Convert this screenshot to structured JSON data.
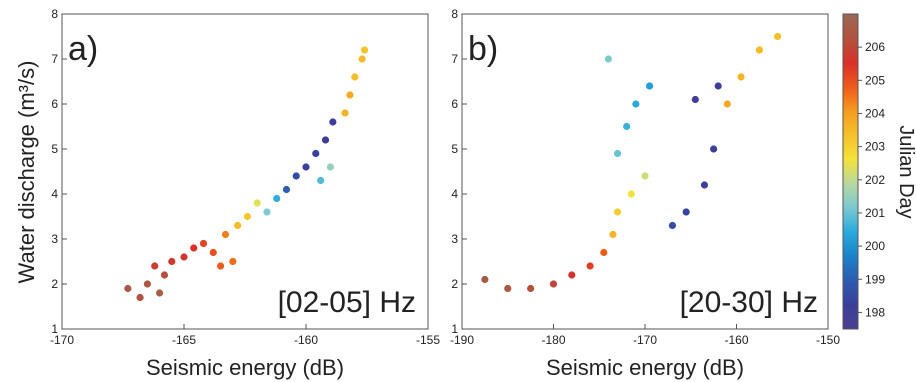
{
  "figure": {
    "ylabel": "Water discharge (m³/s)",
    "xlabel": "Seismic energy (dB)"
  },
  "colorbar": {
    "label": "Julian Day",
    "ticks": [
      "198",
      "199",
      "200",
      "201",
      "202",
      "203",
      "204",
      "205",
      "206"
    ],
    "range": [
      197.5,
      207.0
    ],
    "colors": [
      "#4a3f92",
      "#3a3f9a",
      "#2d5cb0",
      "#1b82c8",
      "#28aadd",
      "#7cc8d0",
      "#b6d8a0",
      "#f4e23a",
      "#f6c12a",
      "#f59a20",
      "#ee5a1a",
      "#d8302a",
      "#b0533e",
      "#9a6856"
    ]
  },
  "chart_data": [
    {
      "type": "scatter",
      "panel_label": "a)",
      "annotation": "[02-05] Hz",
      "xlim": [
        -170,
        -155
      ],
      "ylim": [
        1,
        8
      ],
      "xticks": [
        "-170",
        "-165",
        "-160",
        "-155"
      ],
      "yticks": [
        "1",
        "2",
        "3",
        "4",
        "5",
        "6",
        "7",
        "8"
      ],
      "points": [
        {
          "x": -167.3,
          "y": 1.9,
          "day": 206.5
        },
        {
          "x": -166.8,
          "y": 1.7,
          "day": 206.3
        },
        {
          "x": -166.5,
          "y": 2.0,
          "day": 206.4
        },
        {
          "x": -166.0,
          "y": 1.8,
          "day": 206.6
        },
        {
          "x": -165.8,
          "y": 2.2,
          "day": 206.2
        },
        {
          "x": -166.2,
          "y": 2.4,
          "day": 205.8
        },
        {
          "x": -165.5,
          "y": 2.5,
          "day": 205.7
        },
        {
          "x": -165.0,
          "y": 2.6,
          "day": 205.6
        },
        {
          "x": -164.6,
          "y": 2.8,
          "day": 205.5
        },
        {
          "x": -164.2,
          "y": 2.9,
          "day": 205.2
        },
        {
          "x": -163.8,
          "y": 2.7,
          "day": 205.0
        },
        {
          "x": -163.5,
          "y": 2.4,
          "day": 204.8
        },
        {
          "x": -163.0,
          "y": 2.5,
          "day": 204.6
        },
        {
          "x": -163.3,
          "y": 3.1,
          "day": 204.4
        },
        {
          "x": -162.8,
          "y": 3.3,
          "day": 203.5
        },
        {
          "x": -162.4,
          "y": 3.5,
          "day": 203.2
        },
        {
          "x": -162.0,
          "y": 3.8,
          "day": 202.4
        },
        {
          "x": -161.6,
          "y": 3.6,
          "day": 201.2
        },
        {
          "x": -161.2,
          "y": 3.9,
          "day": 200.5
        },
        {
          "x": -160.8,
          "y": 4.1,
          "day": 199.0
        },
        {
          "x": -160.4,
          "y": 4.4,
          "day": 198.5
        },
        {
          "x": -160.0,
          "y": 4.6,
          "day": 198.2
        },
        {
          "x": -159.6,
          "y": 4.9,
          "day": 198.3
        },
        {
          "x": -159.2,
          "y": 5.2,
          "day": 198.0
        },
        {
          "x": -158.9,
          "y": 5.6,
          "day": 198.1
        },
        {
          "x": -159.4,
          "y": 4.3,
          "day": 200.8
        },
        {
          "x": -159.0,
          "y": 4.6,
          "day": 201.5
        },
        {
          "x": -158.4,
          "y": 5.8,
          "day": 203.6
        },
        {
          "x": -158.2,
          "y": 6.2,
          "day": 203.8
        },
        {
          "x": -158.0,
          "y": 6.6,
          "day": 203.4
        },
        {
          "x": -157.7,
          "y": 7.0,
          "day": 203.5
        },
        {
          "x": -157.6,
          "y": 7.2,
          "day": 203.3
        }
      ]
    },
    {
      "type": "scatter",
      "panel_label": "b)",
      "annotation": "[20-30] Hz",
      "xlim": [
        -190,
        -150
      ],
      "ylim": [
        1,
        8
      ],
      "xticks": [
        "-190",
        "-180",
        "-170",
        "-160",
        "-150"
      ],
      "yticks": [
        "1",
        "2",
        "3",
        "4",
        "5",
        "6",
        "7",
        "8"
      ],
      "points": [
        {
          "x": -187.5,
          "y": 2.1,
          "day": 206.5
        },
        {
          "x": -185.0,
          "y": 1.9,
          "day": 206.4
        },
        {
          "x": -182.5,
          "y": 1.9,
          "day": 206.2
        },
        {
          "x": -180.0,
          "y": 2.0,
          "day": 206.0
        },
        {
          "x": -178.0,
          "y": 2.2,
          "day": 205.6
        },
        {
          "x": -176.0,
          "y": 2.4,
          "day": 205.3
        },
        {
          "x": -174.5,
          "y": 2.7,
          "day": 204.8
        },
        {
          "x": -173.5,
          "y": 3.1,
          "day": 203.6
        },
        {
          "x": -173.0,
          "y": 3.6,
          "day": 203.1
        },
        {
          "x": -171.5,
          "y": 4.0,
          "day": 202.6
        },
        {
          "x": -170.0,
          "y": 4.4,
          "day": 202.2
        },
        {
          "x": -173.0,
          "y": 4.9,
          "day": 201.0
        },
        {
          "x": -172.0,
          "y": 5.5,
          "day": 200.6
        },
        {
          "x": -171.0,
          "y": 6.0,
          "day": 200.4
        },
        {
          "x": -169.5,
          "y": 6.4,
          "day": 200.2
        },
        {
          "x": -174.0,
          "y": 7.0,
          "day": 201.2
        },
        {
          "x": -167.0,
          "y": 3.3,
          "day": 198.6
        },
        {
          "x": -165.5,
          "y": 3.6,
          "day": 198.3
        },
        {
          "x": -163.5,
          "y": 4.2,
          "day": 198.1
        },
        {
          "x": -162.5,
          "y": 5.0,
          "day": 198.0
        },
        {
          "x": -164.5,
          "y": 6.1,
          "day": 197.9
        },
        {
          "x": -162.0,
          "y": 6.4,
          "day": 198.0
        },
        {
          "x": -161.0,
          "y": 6.0,
          "day": 203.8
        },
        {
          "x": -159.5,
          "y": 6.6,
          "day": 203.6
        },
        {
          "x": -157.5,
          "y": 7.2,
          "day": 203.5
        },
        {
          "x": -155.5,
          "y": 7.5,
          "day": 203.4
        }
      ]
    }
  ]
}
